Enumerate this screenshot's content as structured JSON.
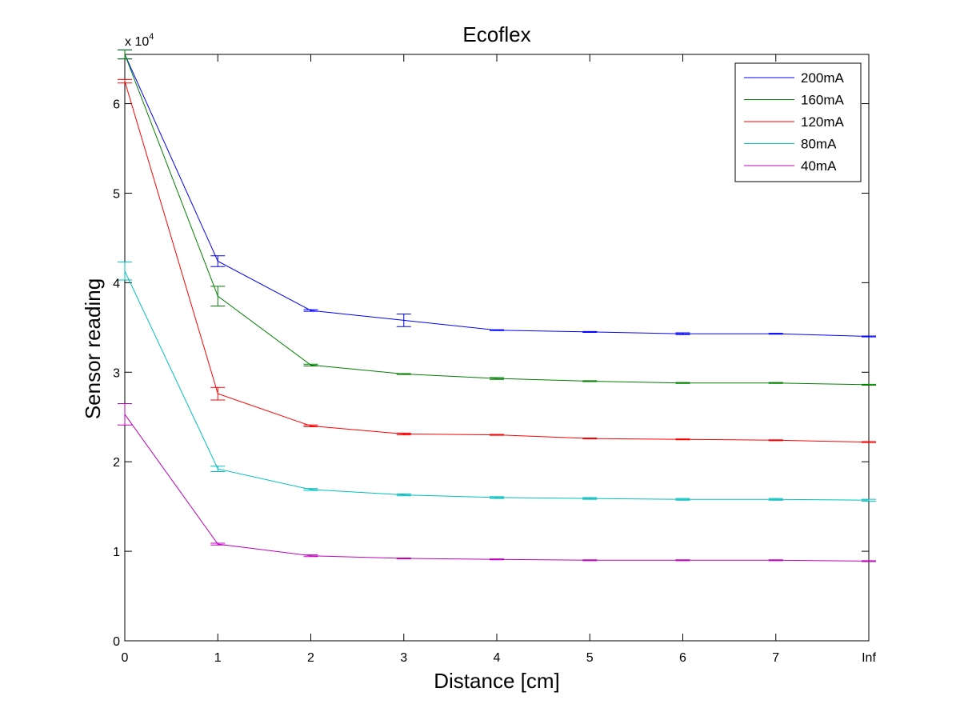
{
  "chart_data": {
    "type": "line",
    "title": "Ecoflex",
    "xlabel": "Distance [cm]",
    "ylabel": "Sensor reading",
    "y_multiplier_label": "x 10",
    "y_multiplier_exponent": "4",
    "x_tick_labels": [
      "0",
      "1",
      "2",
      "3",
      "4",
      "5",
      "6",
      "7",
      "Inf"
    ],
    "y_tick_labels": [
      "0",
      "1",
      "2",
      "3",
      "4",
      "5",
      "6"
    ],
    "y_tick_values": [
      0,
      1,
      2,
      3,
      4,
      5,
      6
    ],
    "xlim": [
      0,
      8
    ],
    "ylim": [
      0,
      6.55
    ],
    "grid": false,
    "legend_position": "top-right",
    "series": [
      {
        "name": "200mA",
        "color": "#0000ff",
        "x": [
          0,
          1,
          2,
          3,
          4,
          5,
          6,
          7,
          8
        ],
        "values": [
          6.55,
          4.24,
          3.69,
          3.58,
          3.47,
          3.45,
          3.43,
          3.43,
          3.4
        ],
        "error": [
          0.05,
          0.06,
          0.01,
          0.07,
          0.005,
          0.005,
          0.01,
          0.005,
          0.005
        ]
      },
      {
        "name": "160mA",
        "color": "#008000",
        "x": [
          0,
          1,
          2,
          3,
          4,
          5,
          6,
          7,
          8
        ],
        "values": [
          6.55,
          3.85,
          3.08,
          2.98,
          2.93,
          2.9,
          2.88,
          2.88,
          2.86
        ],
        "error": [
          0.05,
          0.11,
          0.01,
          0.005,
          0.01,
          0.005,
          0.005,
          0.005,
          0.005
        ]
      },
      {
        "name": "120mA",
        "color": "#ff0000",
        "x": [
          0,
          1,
          2,
          3,
          4,
          5,
          6,
          7,
          8
        ],
        "values": [
          6.25,
          2.76,
          2.4,
          2.31,
          2.3,
          2.26,
          2.25,
          2.24,
          2.22
        ],
        "error": [
          0.02,
          0.07,
          0.01,
          0.01,
          0.005,
          0.005,
          0.005,
          0.005,
          0.005
        ]
      },
      {
        "name": "80mA",
        "color": "#00bfbf",
        "x": [
          0,
          1,
          2,
          3,
          4,
          5,
          6,
          7,
          8
        ],
        "values": [
          4.13,
          1.92,
          1.69,
          1.63,
          1.6,
          1.59,
          1.58,
          1.58,
          1.57
        ],
        "error": [
          0.1,
          0.03,
          0.01,
          0.01,
          0.01,
          0.01,
          0.01,
          0.01,
          0.01
        ]
      },
      {
        "name": "40mA",
        "color": "#bf00bf",
        "x": [
          0,
          1,
          2,
          3,
          4,
          5,
          6,
          7,
          8
        ],
        "values": [
          2.53,
          1.08,
          0.95,
          0.92,
          0.91,
          0.9,
          0.9,
          0.9,
          0.89
        ],
        "error": [
          0.12,
          0.01,
          0.01,
          0.005,
          0.005,
          0.005,
          0.005,
          0.005,
          0.005
        ]
      }
    ]
  }
}
